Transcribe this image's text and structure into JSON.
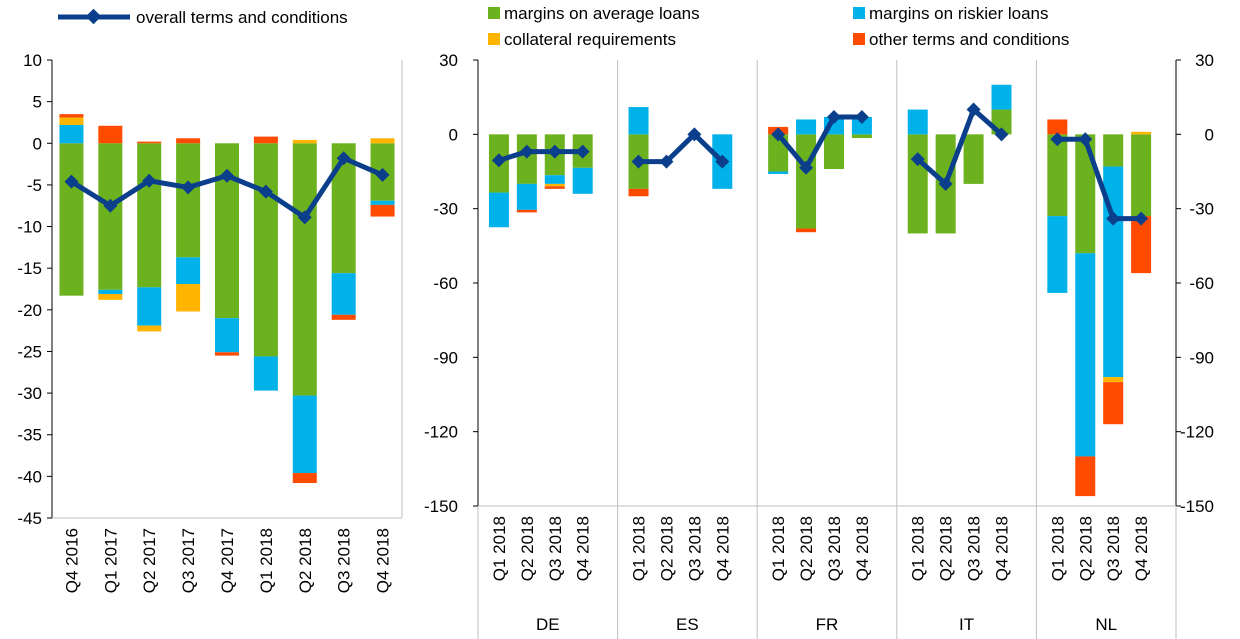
{
  "colors": {
    "overall": "#0b3f8c",
    "margins_average": "#6cb21e",
    "margins_riskier": "#00b1ea",
    "collateral": "#ffb400",
    "other": "#ff4b00",
    "grid_separator": "#bfbfbf"
  },
  "legend": {
    "overall": "overall terms and conditions",
    "margins_average": "margins on average loans",
    "margins_riskier": "margins on riskier loans",
    "collateral": "collateral requirements",
    "other": "other terms and conditions"
  },
  "chart_data": [
    {
      "type": "bar",
      "stacked": true,
      "categories": [
        "Q4 2016",
        "Q1 2017",
        "Q2 2017",
        "Q3 2017",
        "Q4 2017",
        "Q1 2018",
        "Q2 2018",
        "Q3 2018",
        "Q4 2018"
      ],
      "ylim": [
        -45,
        10
      ],
      "yticks": [
        "10",
        "5",
        "0",
        "-5",
        "-10",
        "-15",
        "-20",
        "-25",
        "-30",
        "-35",
        "-40",
        "-45"
      ],
      "series": [
        {
          "name": "margins on average loans",
          "values": [
            -18.3,
            -17.6,
            -17.3,
            -13.7,
            -21.0,
            -25.6,
            -30.3,
            -15.6,
            -6.9
          ]
        },
        {
          "name": "margins on riskier loans",
          "values": [
            2.2,
            -0.5,
            -4.6,
            -3.2,
            -4.1,
            -4.1,
            -9.3,
            -5.0,
            -0.5
          ]
        },
        {
          "name": "collateral requirements",
          "values": [
            0.9,
            -0.7,
            -0.7,
            -3.3,
            0.0,
            0.0,
            0.4,
            0.0,
            0.6
          ]
        },
        {
          "name": "other terms and conditions",
          "values": [
            0.4,
            2.1,
            0.2,
            0.6,
            -0.4,
            0.8,
            -1.2,
            -0.6,
            -1.4
          ]
        },
        {
          "name": "overall terms and conditions",
          "type": "line",
          "values": [
            -4.6,
            -7.5,
            -4.5,
            -5.3,
            -3.9,
            -5.8,
            -8.9,
            -1.8,
            -3.8
          ]
        }
      ]
    },
    {
      "type": "bar",
      "stacked": true,
      "quarters": [
        "Q1 2018",
        "Q2 2018",
        "Q3 2018",
        "Q4 2018"
      ],
      "countries": [
        "DE",
        "ES",
        "FR",
        "IT",
        "NL"
      ],
      "ylim": [
        -150,
        30
      ],
      "yticks": [
        "30",
        "0",
        "-30",
        "-60",
        "-90",
        "-120",
        "-150"
      ],
      "groups": [
        {
          "country": "DE",
          "margins_average": [
            -23.5,
            -20.0,
            -16.5,
            -13.5
          ],
          "margins_riskier": [
            -14.0,
            -10.5,
            -3.5,
            -10.5
          ],
          "collateral": [
            0,
            0,
            -1.0,
            0
          ],
          "other": [
            0,
            -1.0,
            -1.0,
            0
          ],
          "overall": [
            -10.5,
            -7.0,
            -7.0,
            -7.0
          ]
        },
        {
          "country": "ES",
          "margins_average": [
            -22.0,
            0,
            0,
            0
          ],
          "margins_riskier": [
            11.0,
            0,
            0,
            -22.0
          ],
          "collateral": [
            0,
            0,
            0,
            0
          ],
          "other": [
            -3.0,
            0,
            0,
            0
          ],
          "overall": [
            -11.0,
            -11.0,
            0.0,
            -11.0
          ]
        },
        {
          "country": "FR",
          "margins_average": [
            -15.0,
            -38.0,
            -14.0,
            -1.5
          ],
          "margins_riskier": [
            -1.0,
            6.0,
            7.0,
            7.0
          ],
          "collateral": [
            0,
            0,
            0,
            0
          ],
          "other": [
            3.0,
            -1.5,
            0,
            0
          ],
          "overall": [
            0.0,
            -13.5,
            7.0,
            7.0
          ]
        },
        {
          "country": "IT",
          "margins_average": [
            -40.0,
            -40.0,
            -20.0,
            10.0
          ],
          "margins_riskier": [
            10.0,
            0,
            0,
            10.0
          ],
          "collateral": [
            0,
            0,
            0,
            0
          ],
          "other": [
            0,
            0,
            0,
            0
          ],
          "overall": [
            -10.0,
            -20.0,
            10.0,
            0.0
          ]
        },
        {
          "country": "NL",
          "margins_average": [
            -33.0,
            -48.0,
            -13.0,
            -33.0
          ],
          "margins_riskier": [
            -31.0,
            -82.0,
            -85.0,
            0
          ],
          "collateral": [
            0,
            0,
            -2.0,
            1.0
          ],
          "other": [
            6.0,
            -16.0,
            -17.0,
            -23.0
          ],
          "overall": [
            -2.0,
            -2.0,
            -34.0,
            -34.0
          ]
        }
      ]
    }
  ]
}
